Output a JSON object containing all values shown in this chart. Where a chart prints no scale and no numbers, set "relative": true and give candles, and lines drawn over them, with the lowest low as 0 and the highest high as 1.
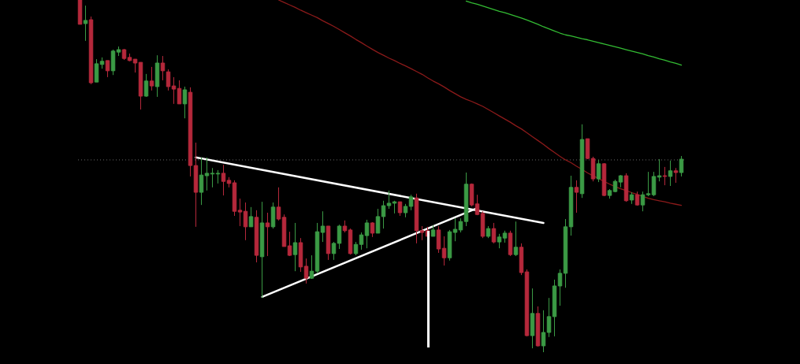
{
  "chart_data": {
    "type": "candlestick",
    "relative": true,
    "categories": [
      null,
      null,
      null,
      null,
      null,
      null,
      null,
      null,
      null,
      null,
      null,
      null,
      null,
      null,
      null,
      null,
      null,
      null,
      null,
      null,
      null,
      null,
      null,
      null,
      null,
      null,
      null,
      null,
      null,
      null,
      null,
      null,
      null,
      null,
      null,
      null,
      null,
      null,
      null,
      null,
      null,
      null,
      null,
      null,
      null,
      null,
      null,
      null,
      null,
      null,
      null,
      null,
      null,
      null,
      null,
      null,
      null,
      null,
      null,
      null,
      null,
      null,
      null,
      null,
      null,
      null,
      null,
      null,
      null,
      null,
      null,
      null,
      null,
      null,
      null,
      null,
      null,
      null,
      null,
      null,
      null,
      null,
      null,
      null,
      null,
      null,
      null,
      null,
      null,
      null,
      null,
      null,
      null,
      null,
      null,
      null,
      null,
      null,
      null,
      null,
      null,
      null,
      null,
      null,
      null,
      null,
      null,
      null,
      null,
      null
    ],
    "ohlc": [
      [
        1,
        1,
        0.931,
        0.931
      ],
      [
        0.933,
        0.984,
        0.884,
        0.942
      ],
      [
        0.944,
        0.953,
        0.761,
        0.765
      ],
      [
        0.767,
        0.832,
        0.767,
        0.819
      ],
      [
        0.817,
        0.837,
        0.805,
        0.826
      ],
      [
        0.828,
        0.828,
        0.781,
        0.799
      ],
      [
        0.799,
        0.859,
        0.787,
        0.855
      ],
      [
        0.852,
        0.868,
        0.841,
        0.859
      ],
      [
        0.859,
        0.861,
        0.83,
        0.834
      ],
      [
        0.837,
        0.848,
        0.826,
        0.828
      ],
      [
        0.832,
        0.832,
        0.794,
        0.821
      ],
      [
        0.823,
        0.823,
        0.689,
        0.727
      ],
      [
        0.727,
        0.79,
        0.725,
        0.77
      ],
      [
        0.77,
        0.81,
        0.743,
        0.756
      ],
      [
        0.754,
        0.843,
        0.725,
        0.821
      ],
      [
        0.821,
        0.841,
        0.772,
        0.799
      ],
      [
        0.796,
        0.803,
        0.743,
        0.754
      ],
      [
        0.756,
        0.781,
        0.705,
        0.747
      ],
      [
        0.749,
        0.772,
        0.705,
        0.705
      ],
      [
        0.705,
        0.754,
        0.664,
        0.745
      ],
      [
        0.738,
        0.752,
        0.499,
        0.53
      ],
      [
        0.53,
        0.595,
        0.356,
        0.454
      ],
      [
        0.454,
        0.553,
        0.418,
        0.503
      ],
      [
        0.501,
        0.553,
        0.459,
        0.508
      ],
      [
        0.506,
        0.523,
        0.468,
        0.508
      ],
      [
        0.506,
        0.517,
        0.479,
        0.508
      ],
      [
        0.508,
        0.532,
        0.445,
        0.485
      ],
      [
        0.488,
        0.497,
        0.468,
        0.479
      ],
      [
        0.481,
        0.488,
        0.387,
        0.4
      ],
      [
        0.403,
        0.436,
        0.358,
        0.398
      ],
      [
        0.4,
        0.425,
        0.318,
        0.356
      ],
      [
        0.356,
        0.412,
        0.356,
        0.385
      ],
      [
        0.383,
        0.403,
        0.255,
        0.275
      ],
      [
        0.271,
        0.427,
        0.154,
        0.367
      ],
      [
        0.367,
        0.396,
        0.273,
        0.356
      ],
      [
        0.356,
        0.425,
        0.351,
        0.412
      ],
      [
        0.412,
        0.468,
        0.374,
        0.378
      ],
      [
        0.383,
        0.391,
        0.3,
        0.3
      ],
      [
        0.302,
        0.342,
        0.273,
        0.275
      ],
      [
        0.277,
        0.367,
        0.23,
        0.311
      ],
      [
        0.311,
        0.324,
        0.228,
        0.242
      ],
      [
        0.244,
        0.266,
        0.195,
        0.21
      ],
      [
        0.21,
        0.275,
        0.208,
        0.23
      ],
      [
        0.23,
        0.367,
        0.224,
        0.342
      ],
      [
        0.34,
        0.4,
        0.313,
        0.358
      ],
      [
        0.358,
        0.358,
        0.262,
        0.28
      ],
      [
        0.28,
        0.313,
        0.262,
        0.309
      ],
      [
        0.309,
        0.362,
        0.293,
        0.358
      ],
      [
        0.358,
        0.374,
        0.34,
        0.345
      ],
      [
        0.347,
        0.351,
        0.277,
        0.28
      ],
      [
        0.28,
        0.313,
        0.275,
        0.306
      ],
      [
        0.306,
        0.34,
        0.291,
        0.333
      ],
      [
        0.331,
        0.376,
        0.295,
        0.367
      ],
      [
        0.367,
        0.369,
        0.327,
        0.338
      ],
      [
        0.338,
        0.407,
        0.338,
        0.385
      ],
      [
        0.385,
        0.43,
        0.351,
        0.416
      ],
      [
        0.416,
        0.459,
        0.407,
        0.423
      ],
      [
        0.423,
        0.43,
        0.394,
        0.427
      ],
      [
        0.427,
        0.427,
        0.387,
        0.396
      ],
      [
        0.396,
        0.421,
        0.383,
        0.414
      ],
      [
        0.414,
        0.447,
        0.403,
        0.441
      ],
      [
        0.438,
        0.45,
        0.309,
        0.345
      ],
      [
        0.345,
        0.358,
        0.318,
        0.34
      ],
      [
        0.345,
        0.356,
        0.329,
        0.329
      ],
      [
        0.329,
        0.36,
        0.329,
        0.347
      ],
      [
        0.347,
        0.358,
        0.282,
        0.293
      ],
      [
        0.295,
        0.329,
        0.246,
        0.268
      ],
      [
        0.268,
        0.347,
        0.26,
        0.342
      ],
      [
        0.34,
        0.38,
        0.315,
        0.349
      ],
      [
        0.347,
        0.38,
        0.34,
        0.371
      ],
      [
        0.371,
        0.51,
        0.358,
        0.477
      ],
      [
        0.477,
        0.479,
        0.414,
        0.418
      ],
      [
        0.421,
        0.447,
        0.389,
        0.391
      ],
      [
        0.394,
        0.4,
        0.324,
        0.329
      ],
      [
        0.329,
        0.358,
        0.324,
        0.351
      ],
      [
        0.351,
        0.367,
        0.309,
        0.313
      ],
      [
        0.313,
        0.336,
        0.295,
        0.327
      ],
      [
        0.324,
        0.345,
        0.311,
        0.338
      ],
      [
        0.338,
        0.345,
        0.273,
        0.277
      ],
      [
        0.277,
        0.371,
        0.273,
        0.298
      ],
      [
        0.298,
        0.309,
        0.219,
        0.226
      ],
      [
        0.228,
        0.235,
        0.045,
        0.047
      ],
      [
        0.047,
        0.181,
        0.011,
        0.11
      ],
      [
        0.11,
        0.13,
        0.016,
        0.018
      ],
      [
        0.018,
        0.119,
        0,
        0.056
      ],
      [
        0.056,
        0.154,
        0.043,
        0.101
      ],
      [
        0.101,
        0.206,
        0.045,
        0.188
      ],
      [
        0.188,
        0.235,
        0.132,
        0.224
      ],
      [
        0.224,
        0.378,
        0.183,
        0.356
      ],
      [
        0.356,
        0.501,
        0.331,
        0.468
      ],
      [
        0.468,
        0.488,
        0.396,
        0.454
      ],
      [
        0.45,
        0.647,
        0.438,
        0.604
      ],
      [
        0.606,
        0.606,
        0.548,
        0.55
      ],
      [
        0.55,
        0.555,
        0.485,
        0.492
      ],
      [
        0.492,
        0.546,
        0.483,
        0.535
      ],
      [
        0.535,
        0.537,
        0.443,
        0.445
      ],
      [
        0.445,
        0.463,
        0.436,
        0.459
      ],
      [
        0.456,
        0.49,
        0.454,
        0.485
      ],
      [
        0.483,
        0.503,
        0.468,
        0.501
      ],
      [
        0.501,
        0.508,
        0.427,
        0.43
      ],
      [
        0.432,
        0.454,
        0.421,
        0.447
      ],
      [
        0.447,
        0.456,
        0.416,
        0.418
      ],
      [
        0.418,
        0.456,
        0.4,
        0.447
      ],
      [
        0.447,
        0.512,
        0.443,
        0.45
      ],
      [
        0.447,
        0.512,
        0.443,
        0.499
      ],
      [
        0.497,
        0.548,
        0.485,
        0.501
      ],
      [
        0.501,
        0.526,
        0.474,
        0.499
      ],
      [
        0.499,
        0.544,
        0.472,
        0.515
      ],
      [
        0.515,
        0.523,
        0.481,
        0.51
      ],
      [
        0.51,
        0.557,
        0.499,
        0.548
      ]
    ],
    "colors": [
      "#b5283b",
      "#3b9a45",
      "#b5283b",
      "#3b9a45",
      "#3b9a45",
      "#b5283b",
      "#3b9a45",
      "#3b9a45",
      "#b5283b",
      "#b5283b",
      "#b5283b",
      "#b5283b",
      "#3b9a45",
      "#b5283b",
      "#3b9a45",
      "#b5283b",
      "#b5283b",
      "#b5283b",
      "#b5283b",
      "#3b9a45",
      "#b5283b",
      "#b5283b",
      "#3b9a45",
      "#3b9a45",
      "#3b9a45",
      "#3b9a45",
      "#b5283b",
      "#b5283b",
      "#b5283b",
      "#b5283b",
      "#b5283b",
      "#3b9a45",
      "#b5283b",
      "#3b9a45",
      "#b5283b",
      "#3b9a45",
      "#b5283b",
      "#b5283b",
      "#b5283b",
      "#3b9a45",
      "#b5283b",
      "#b5283b",
      "#3b9a45",
      "#3b9a45",
      "#3b9a45",
      "#b5283b",
      "#3b9a45",
      "#3b9a45",
      "#b5283b",
      "#b5283b",
      "#3b9a45",
      "#3b9a45",
      "#3b9a45",
      "#b5283b",
      "#3b9a45",
      "#3b9a45",
      "#3b9a45",
      "#3b9a45",
      "#b5283b",
      "#3b9a45",
      "#3b9a45",
      "#b5283b",
      "#b5283b",
      "#b5283b",
      "#3b9a45",
      "#b5283b",
      "#b5283b",
      "#3b9a45",
      "#3b9a45",
      "#3b9a45",
      "#3b9a45",
      "#b5283b",
      "#b5283b",
      "#b5283b",
      "#3b9a45",
      "#b5283b",
      "#3b9a45",
      "#3b9a45",
      "#b5283b",
      "#3b9a45",
      "#b5283b",
      "#b5283b",
      "#3b9a45",
      "#b5283b",
      "#3b9a45",
      "#3b9a45",
      "#3b9a45",
      "#3b9a45",
      "#3b9a45",
      "#3b9a45",
      "#b5283b",
      "#3b9a45",
      "#b5283b",
      "#b5283b",
      "#3b9a45",
      "#b5283b",
      "#3b9a45",
      "#3b9a45",
      "#3b9a45",
      "#b5283b",
      "#3b9a45",
      "#b5283b",
      "#3b9a45",
      "#3b9a45",
      "#3b9a45",
      "#3b9a45",
      "#b5283b",
      "#3b9a45",
      "#b5283b",
      "#3b9a45"
    ],
    "series": [
      {
        "type": "line",
        "color": "#8b1a1a",
        "values": [
          null,
          null,
          null,
          null,
          null,
          null,
          null,
          null,
          null,
          null,
          null,
          null,
          null,
          null,
          null,
          null,
          null,
          null,
          null,
          null,
          null,
          null,
          null,
          null,
          null,
          null,
          null,
          null,
          null,
          null,
          null,
          null,
          null,
          null,
          null,
          null,
          1,
          0.993,
          0.986,
          0.979,
          0.971,
          0.964,
          0.957,
          0.95,
          0.941,
          0.933,
          0.925,
          0.916,
          0.907,
          0.898,
          0.888,
          0.879,
          0.869,
          0.86,
          0.851,
          0.843,
          0.835,
          0.828,
          0.82,
          0.813,
          0.805,
          0.797,
          0.789,
          0.779,
          0.77,
          0.762,
          0.753,
          0.743,
          0.734,
          0.725,
          0.718,
          0.712,
          0.705,
          0.698,
          0.689,
          0.68,
          0.671,
          0.662,
          0.653,
          0.643,
          0.634,
          0.623,
          0.612,
          0.601,
          0.59,
          0.578,
          0.567,
          0.556,
          0.546,
          0.538,
          0.528,
          0.519,
          0.509,
          0.501,
          0.493,
          0.485,
          0.477,
          0.47,
          0.464,
          0.459,
          0.453,
          0.448,
          0.442,
          0.437,
          0.433,
          0.43,
          0.427,
          0.423,
          0.42,
          0.417
        ]
      },
      {
        "type": "line",
        "color": "#33bb33",
        "values": [
          null,
          null,
          null,
          null,
          null,
          null,
          null,
          null,
          null,
          null,
          null,
          null,
          null,
          null,
          null,
          null,
          null,
          null,
          null,
          null,
          null,
          null,
          null,
          null,
          null,
          null,
          null,
          null,
          null,
          null,
          null,
          null,
          null,
          null,
          null,
          null,
          null,
          null,
          null,
          null,
          null,
          null,
          null,
          null,
          null,
          null,
          null,
          null,
          null,
          null,
          null,
          null,
          null,
          null,
          null,
          null,
          null,
          null,
          null,
          null,
          null,
          null,
          null,
          null,
          null,
          null,
          null,
          null,
          null,
          null,
          0.997,
          0.992,
          0.988,
          0.983,
          0.978,
          0.973,
          0.968,
          0.964,
          0.959,
          0.954,
          0.949,
          0.943,
          0.937,
          0.931,
          0.924,
          0.918,
          0.912,
          0.906,
          0.901,
          0.898,
          0.894,
          0.89,
          0.887,
          0.883,
          0.879,
          0.875,
          0.871,
          0.867,
          0.863,
          0.859,
          0.855,
          0.851,
          0.847,
          0.842,
          0.838,
          0.833,
          0.829,
          0.824,
          0.82,
          0.815
        ]
      },
      {
        "type": "line",
        "color": "#ffffff",
        "values": [
          null,
          null,
          null,
          null,
          null,
          null,
          null,
          null,
          null,
          null,
          null,
          null,
          null,
          null,
          null,
          null,
          null,
          null,
          null,
          null,
          null,
          0.553,
          null,
          null,
          null,
          null,
          null,
          null,
          null,
          null,
          null,
          null,
          null,
          null,
          null,
          null,
          null,
          null,
          null,
          null,
          null,
          null,
          null,
          null,
          null,
          null,
          null,
          null,
          null,
          null,
          null,
          null,
          null,
          null,
          null,
          null,
          null,
          null,
          null,
          null,
          null,
          null,
          null,
          null,
          null,
          null,
          null,
          null,
          null,
          null,
          null,
          null,
          null,
          null,
          null,
          null,
          null,
          null,
          null,
          null,
          null,
          null,
          null,
          null,
          0.367,
          null,
          null,
          null,
          null,
          null,
          null,
          null,
          null,
          null,
          null,
          null,
          null,
          null,
          null,
          null,
          null,
          null,
          null,
          null,
          null,
          null,
          null,
          null,
          null,
          null
        ]
      },
      {
        "type": "line",
        "color": "#ffffff",
        "values": [
          null,
          null,
          null,
          null,
          null,
          null,
          null,
          null,
          null,
          null,
          null,
          null,
          null,
          null,
          null,
          null,
          null,
          null,
          null,
          null,
          null,
          null,
          null,
          null,
          null,
          null,
          null,
          null,
          null,
          null,
          null,
          null,
          null,
          0.157,
          null,
          null,
          null,
          null,
          null,
          null,
          null,
          null,
          null,
          null,
          null,
          null,
          null,
          null,
          null,
          null,
          null,
          null,
          null,
          null,
          null,
          null,
          null,
          null,
          null,
          null,
          null,
          null,
          null,
          null,
          null,
          null,
          null,
          null,
          null,
          null,
          null,
          null,
          0.409,
          null,
          null,
          null,
          null,
          null,
          null,
          null,
          null,
          null,
          null,
          null,
          null,
          null,
          null,
          null,
          null,
          null,
          null,
          null,
          null,
          null,
          null,
          null,
          null,
          null,
          null,
          null,
          null,
          null,
          null,
          null,
          null,
          null,
          null,
          null,
          null,
          null
        ]
      }
    ],
    "ref_lines": [
      {
        "axis": "y",
        "value": 0.546,
        "color": "#666666",
        "line_style": "dotted"
      }
    ]
  }
}
